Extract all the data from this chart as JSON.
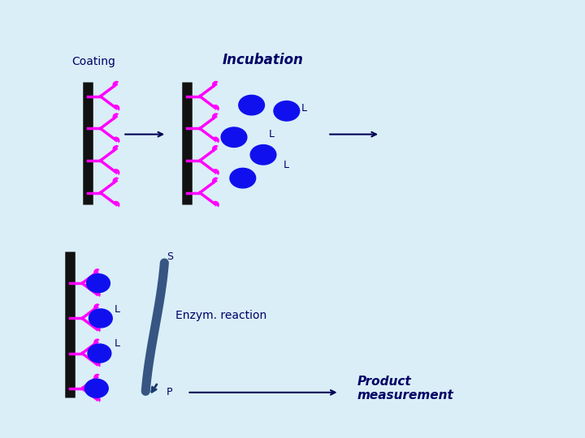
{
  "background_color": "#cde4f0",
  "title": "",
  "labels": {
    "coating": "Coating",
    "incubation": "Incubation",
    "L1": "L",
    "L2": "L",
    "L3": "L",
    "S": "S",
    "L_bot1": "L",
    "L_bot2": "L",
    "enzym": "Enzym. reaction",
    "P": "P",
    "product": "Product\nmeasurement"
  },
  "colors": {
    "wall": "#111111",
    "antibody": "#ff00ff",
    "ligand_blue": "#1010ee",
    "antibody_bound": "#ffaa00",
    "arrow": "#000055",
    "text_dark": "#000066",
    "text_label": "#333333",
    "enzyme_shape": "#1a3a6e",
    "background_top": "#daeef7",
    "background_bottom": "#cde4f0"
  }
}
